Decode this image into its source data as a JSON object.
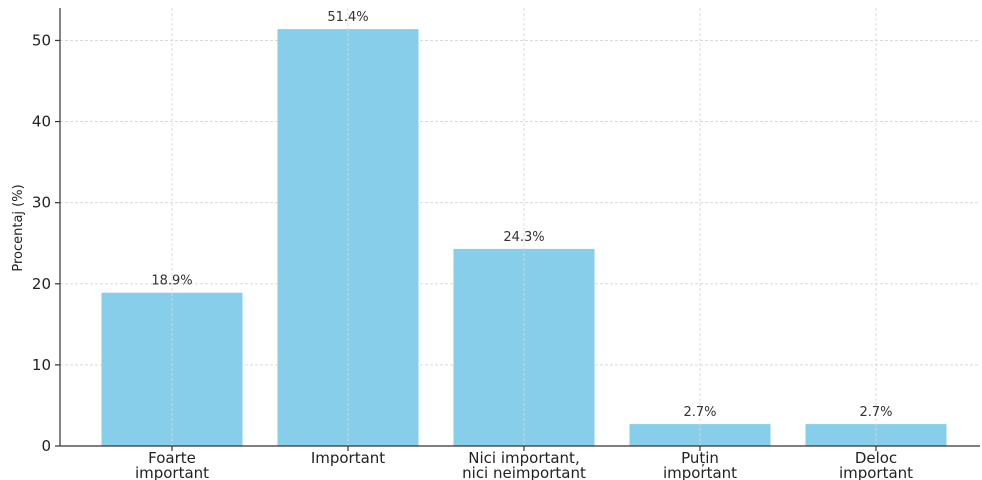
{
  "chart_data": {
    "type": "bar",
    "title": "",
    "xlabel": "",
    "ylabel": "Procentaj (%)",
    "categories": [
      [
        "Foarte",
        "important"
      ],
      [
        "Important"
      ],
      [
        "Nici important,",
        "nici neimportant"
      ],
      [
        "Puțin",
        "important"
      ],
      [
        "Deloc",
        "important"
      ]
    ],
    "values": [
      18.9,
      51.4,
      24.3,
      2.7,
      2.7
    ],
    "data_labels": [
      "18.9%",
      "51.4%",
      "24.3%",
      "2.7%",
      "2.7%"
    ],
    "ylim": [
      0,
      54
    ],
    "yticks": [
      0,
      10,
      20,
      30,
      40,
      50
    ],
    "grid": true,
    "bar_color": "#87CEEB",
    "grid_color": "#d9d9d9",
    "axis_color": "#333333"
  }
}
